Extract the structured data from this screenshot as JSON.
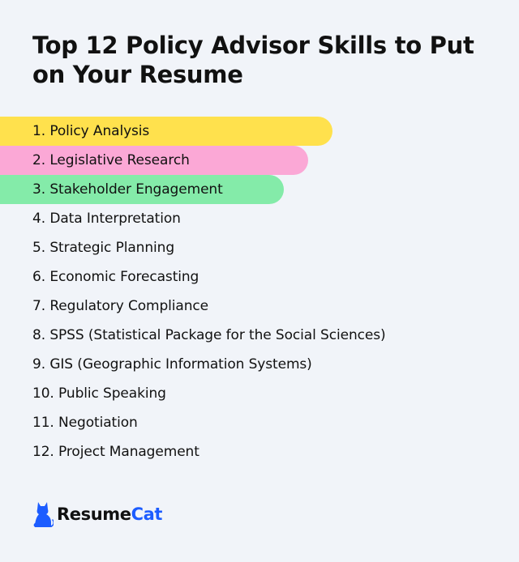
{
  "title": "Top 12 Policy Advisor Skills to Put on Your Resume",
  "skills": [
    {
      "label": "1. Policy Analysis",
      "highlight": "#ffe14d"
    },
    {
      "label": "2. Legislative Research",
      "highlight": "#fba8d6"
    },
    {
      "label": "3. Stakeholder Engagement",
      "highlight": "#84eba9"
    },
    {
      "label": "4. Data Interpretation"
    },
    {
      "label": "5. Strategic Planning"
    },
    {
      "label": "6. Economic Forecasting"
    },
    {
      "label": "7. Regulatory Compliance"
    },
    {
      "label": "8. SPSS (Statistical Package for the Social Sciences)"
    },
    {
      "label": "9. GIS (Geographic Information Systems)"
    },
    {
      "label": "10. Public Speaking"
    },
    {
      "label": "11. Negotiation"
    },
    {
      "label": "12. Project Management"
    }
  ],
  "logo": {
    "icon": "cat-icon",
    "text_part1": "Resume",
    "text_part2": "Cat",
    "brand_color": "#1c5cff"
  }
}
